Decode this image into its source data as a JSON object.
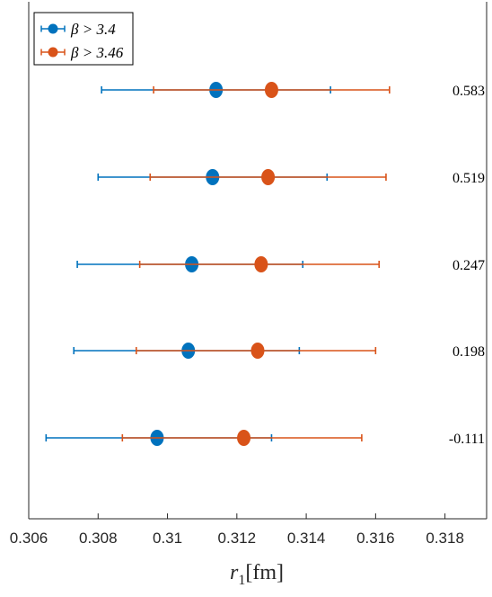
{
  "chart_data": {
    "type": "scatter",
    "title": "",
    "xlabel_main": "r",
    "xlabel_sub": "1",
    "xlabel_unit": "[fm]",
    "ylabel": "",
    "xlim": [
      0.306,
      0.3192
    ],
    "x_ticks": [
      0.306,
      0.308,
      0.31,
      0.312,
      0.314,
      0.316,
      0.318
    ],
    "x_tick_labels": [
      "0.306",
      "0.308",
      "0.31",
      "0.312",
      "0.314",
      "0.316",
      "0.318"
    ],
    "grid": false,
    "legend_position": "top-left",
    "row_labels": [
      "0.583",
      "0.519",
      "0.247",
      "0.198",
      "-0.111"
    ],
    "series": [
      {
        "name": "β > 3.4",
        "color": "#0072BD",
        "points": [
          {
            "row": 0,
            "value": 0.3114,
            "err_low": 0.3081,
            "err_high": 0.3147
          },
          {
            "row": 1,
            "value": 0.3113,
            "err_low": 0.308,
            "err_high": 0.3146
          },
          {
            "row": 2,
            "value": 0.3107,
            "err_low": 0.3074,
            "err_high": 0.3139
          },
          {
            "row": 3,
            "value": 0.3106,
            "err_low": 0.3073,
            "err_high": 0.3138
          },
          {
            "row": 4,
            "value": 0.3097,
            "err_low": 0.3065,
            "err_high": 0.313
          }
        ]
      },
      {
        "name": "β > 3.46",
        "color": "#D95319",
        "points": [
          {
            "row": 0,
            "value": 0.313,
            "err_low": 0.3096,
            "err_high": 0.3164
          },
          {
            "row": 1,
            "value": 0.3129,
            "err_low": 0.3095,
            "err_high": 0.3163
          },
          {
            "row": 2,
            "value": 0.3127,
            "err_low": 0.3092,
            "err_high": 0.3161
          },
          {
            "row": 3,
            "value": 0.3126,
            "err_low": 0.3091,
            "err_high": 0.316
          },
          {
            "row": 4,
            "value": 0.3122,
            "err_low": 0.3087,
            "err_high": 0.3156
          }
        ]
      }
    ]
  }
}
